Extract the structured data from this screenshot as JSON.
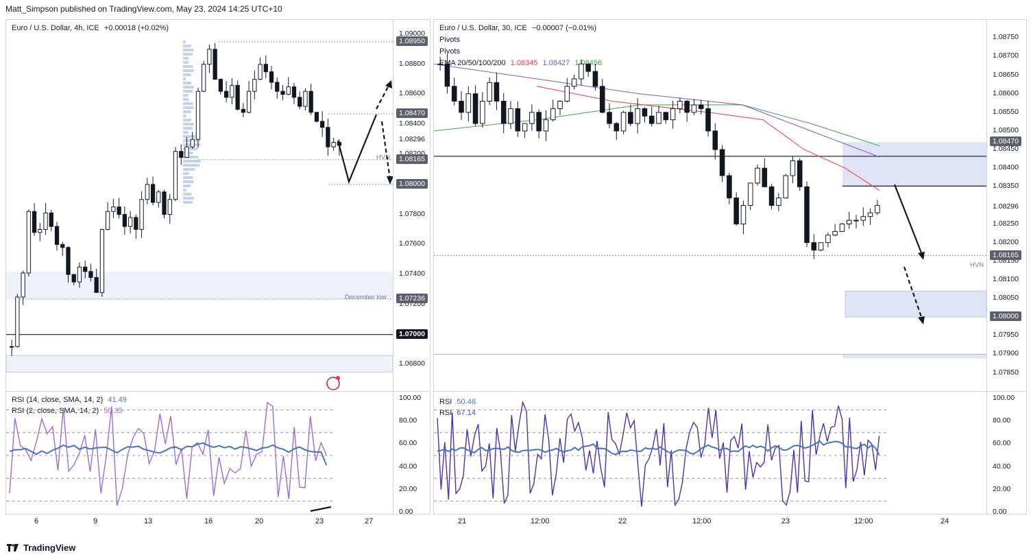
{
  "header": {
    "published": "Matt_Simpson published on TradingView.com, May 23, 2024 14:25 UTC+10"
  },
  "footer": {
    "brand": "TradingView"
  },
  "colors": {
    "bull": "#131722",
    "bear": "#131722",
    "ema20": "#f23645",
    "ema50": "#7e57c2",
    "ema100": "#7e57c2",
    "ema200": "#43a047",
    "rsi14": "#4472c4",
    "rsi2": "#9c6ad6",
    "zone": "#e0e3f5"
  },
  "left": {
    "legend": {
      "symbol": "Euro / U.S. Dollar, 4h, ICE",
      "change": "+0.00018 (+0.02%)"
    },
    "price_ticks": [
      "1.09000",
      "1.08800",
      "1.08600",
      "1.08400",
      "1.08200",
      "1.08000",
      "1.07800",
      "1.07600",
      "1.07400",
      "1.07200",
      "1.06800"
    ],
    "price_tags": [
      {
        "text": "1.08950",
        "style": "dark"
      },
      {
        "text": "1.08470",
        "style": "dark"
      },
      {
        "text": "1.08296",
        "style": "plain"
      },
      {
        "text": "1.08165",
        "style": "dark"
      },
      {
        "text": "1.08000",
        "style": "dark"
      },
      {
        "text": "1.07236",
        "style": "dark"
      },
      {
        "text": "1.07000",
        "style": "black"
      }
    ],
    "labels": {
      "hvn": "HVN",
      "december_low": "December low"
    },
    "time_ticks": [
      "6",
      "9",
      "13",
      "16",
      "20",
      "23",
      "27"
    ],
    "rsi_legend": {
      "rsi14": "RSI (14, close, SMA, 14, 2)",
      "rsi14_val": "41.49",
      "rsi2": "RSI (2, close, SMA, 14, 2)",
      "rsi2_val": "50.35"
    },
    "rsi_ticks": [
      "100.00",
      "80.00",
      "60.00",
      "40.00",
      "20.00",
      "0.00"
    ]
  },
  "right": {
    "legend": {
      "symbol": "Euro / U.S. Dollar, 30, ICE",
      "change": "−0.00007 (−0.01%)",
      "pivots1": "Pivots",
      "pivots2": "Pivots",
      "ema": "EMA 20/50/100/200",
      "ema20_val": "1.08345",
      "ema50_val": "1.08427",
      "ema200_val": "1.08456"
    },
    "price_ticks": [
      "1.08750",
      "1.08700",
      "1.08650",
      "1.08600",
      "1.08550",
      "1.08500",
      "1.08450",
      "1.08400",
      "1.08350",
      "1.08250",
      "1.08200",
      "1.08150",
      "1.08100",
      "1.08050",
      "1.07950",
      "1.07900",
      "1.07850"
    ],
    "price_tags": [
      {
        "text": "1.08470",
        "style": "dark"
      },
      {
        "text": "1.08296",
        "style": "plain"
      },
      {
        "text": "1.08165",
        "style": "dark"
      },
      {
        "text": "1.08000",
        "style": "dark"
      }
    ],
    "labels": {
      "hvn": "HVN"
    },
    "time_ticks": [
      "21",
      "12:00",
      "22",
      "12:00",
      "23",
      "12:00",
      "24"
    ],
    "rsi_legend": {
      "rsi_a": "RSI",
      "rsi_a_val": "50.46",
      "rsi_b": "RSI",
      "rsi_b_val": "67.14"
    },
    "rsi_ticks": [
      "100.00",
      "80.00",
      "60.00",
      "40.00",
      "20.00",
      "0.00"
    ]
  },
  "chart_data": [
    {
      "type": "candlestick",
      "title": "Euro / U.S. Dollar, 4h, ICE",
      "ylim": [
        1.0672,
        1.0905
      ],
      "levels": [
        1.0895,
        1.0847,
        1.08165,
        1.08,
        1.07236,
        1.07
      ],
      "x_labels": [
        "6",
        "9",
        "13",
        "16",
        "20",
        "23",
        "27"
      ],
      "close_path": [
        1.0692,
        1.0725,
        1.0741,
        1.0782,
        1.0768,
        1.077,
        1.0781,
        1.0772,
        1.076,
        1.0758,
        1.074,
        1.0735,
        1.0745,
        1.0742,
        1.0738,
        1.0728,
        1.077,
        1.0782,
        1.0785,
        1.078,
        1.0772,
        1.0778,
        1.077,
        1.079,
        1.08,
        1.0788,
        1.0795,
        1.078,
        1.079,
        1.0822,
        1.0818,
        1.0825,
        1.083,
        1.0862,
        1.088,
        1.089,
        1.087,
        1.0862,
        1.0858,
        1.0866,
        1.085,
        1.0848,
        1.0862,
        1.087,
        1.088,
        1.0875,
        1.0868,
        1.0862,
        1.086,
        1.0865,
        1.0858,
        1.0852,
        1.0862,
        1.0848,
        1.0842,
        1.0838,
        1.0825,
        1.0828,
        1.0826
      ]
    },
    {
      "type": "candlestick",
      "title": "Euro / U.S. Dollar, 30, ICE",
      "ylim": [
        1.0784,
        1.0878
      ],
      "levels": [
        1.0847,
        1.08432,
        1.08352,
        1.08165,
        1.08,
        1.079
      ],
      "x_labels": [
        "21",
        "12:00",
        "22",
        "12:00",
        "23",
        "12:00",
        "24"
      ],
      "ema": [
        {
          "name": "EMA 20",
          "value": 1.08345
        },
        {
          "name": "EMA 50",
          "value": 1.08427
        },
        {
          "name": "EMA 200",
          "value": 1.08456
        }
      ],
      "close_path": [
        1.0868,
        1.0862,
        1.0858,
        1.0855,
        1.086,
        1.0852,
        1.0858,
        1.0863,
        1.0858,
        1.0852,
        1.0856,
        1.085,
        1.0852,
        1.0855,
        1.085,
        1.0853,
        1.0856,
        1.0858,
        1.0862,
        1.0864,
        1.0868,
        1.0866,
        1.0862,
        1.0855,
        1.0852,
        1.085,
        1.0855,
        1.0852,
        1.0856,
        1.0854,
        1.0852,
        1.0855,
        1.0853,
        1.0856,
        1.0858,
        1.0855,
        1.0857,
        1.0856,
        1.085,
        1.0845,
        1.0838,
        1.0832,
        1.0825,
        1.083,
        1.0836,
        1.084,
        1.0835,
        1.083,
        1.0832,
        1.0838,
        1.0842,
        1.0835,
        1.082,
        1.0818,
        1.082,
        1.0822,
        1.0823,
        1.0825,
        1.0826,
        1.0826,
        1.0827,
        1.0828,
        1.083
      ]
    }
  ]
}
